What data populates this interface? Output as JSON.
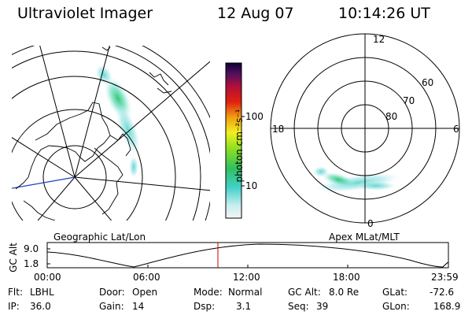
{
  "header": {
    "instrument": "Ultraviolet Imager",
    "date": "12 Aug 07",
    "time": "10:14:26 UT"
  },
  "colorbar": {
    "unit_label": "photon cm⁻²s⁻¹",
    "ticks": [
      "100",
      "10"
    ]
  },
  "left_map": {
    "caption": "Geographic Lat/Lon"
  },
  "right_map": {
    "caption": "Apex MLat/MLT",
    "mlt_labels": [
      "12",
      "18",
      "6",
      "0"
    ],
    "mlat_labels": [
      "60",
      "70",
      "80"
    ]
  },
  "altitude_plot": {
    "ylabel": "GC Alt",
    "y_ticks": [
      "9.0",
      "1.8"
    ],
    "x_ticks": [
      "00:00",
      "06:00",
      "12:00",
      "18:00",
      "23:59"
    ],
    "marker_color": "#cc0000"
  },
  "info": {
    "filter_label": "Flt:",
    "filter": "LBHL",
    "ip_label": "IP:",
    "ip": "36.0",
    "door_label": "Door:",
    "door": "Open",
    "gain_label": "Gain:",
    "gain": "14",
    "mode_label": "Mode:",
    "mode": "Normal",
    "dsp_label": "Dsp:",
    "dsp": "3.1",
    "gcalt_label": "GC Alt:",
    "gcalt": "8.0 Re",
    "seq_label": "Seq:",
    "seq": "39",
    "glat_label": "GLat:",
    "glat": "-72.6",
    "glon_label": "GLon:",
    "glon": "168.9"
  }
}
